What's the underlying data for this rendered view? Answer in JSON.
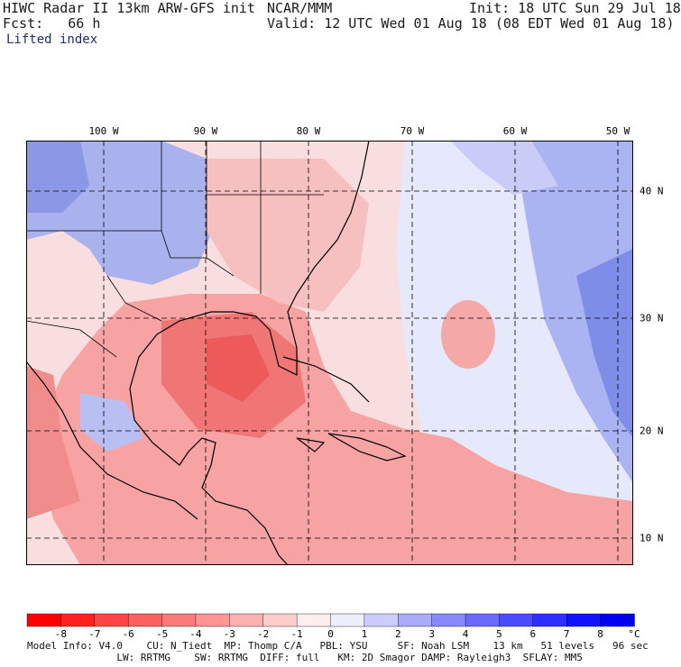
{
  "header": {
    "line1_left": "HIWC Radar II 13km ARW-GFS init",
    "line1_mid": "NCAR/MMM",
    "line1_right": "Init: 18 UTC Sun 29 Jul 18",
    "line2_left": "Fcst:   66 h",
    "line2_right": "Valid: 12 UTC Wed 01 Aug 18 (08 EDT Wed 01 Aug 18)",
    "field": "Lifted index"
  },
  "map": {
    "longitude_labels": [
      "100 W",
      "90 W",
      "80 W",
      "70 W",
      "60 W",
      "50 W"
    ],
    "latitude_labels": [
      "40 N",
      "30 N",
      "20 N",
      "10 N"
    ]
  },
  "colorbar": {
    "labels": [
      "-8",
      "-7",
      "-6",
      "-5",
      "-4",
      "-3",
      "-2",
      "-1",
      "0",
      "1",
      "2",
      "3",
      "4",
      "5",
      "6",
      "7",
      "8"
    ],
    "unit": "°C",
    "colors": [
      "#ff0000",
      "#ff2020",
      "#ff4444",
      "#ff6060",
      "#ff7a7a",
      "#ff9595",
      "#ffb1b1",
      "#ffcccc",
      "#ffeeee",
      "#eeeeff",
      "#ccccff",
      "#aaaaff",
      "#8888ff",
      "#6a6aff",
      "#4c4cff",
      "#2e2eff",
      "#1212ff",
      "#0000ee"
    ]
  },
  "footer": {
    "line1": "Model Info: V4.0    CU: N_Tiedt  MP: Thomp C/A   PBL: YSU     SF: Noah LSM    13 km   51 levels   96 sec",
    "line2": "               LW: RRTMG    SW: RRTMG  DIFF: full   KM: 2D Smagor DAMP: Rayleigh3  SFLAY: MM5"
  }
}
